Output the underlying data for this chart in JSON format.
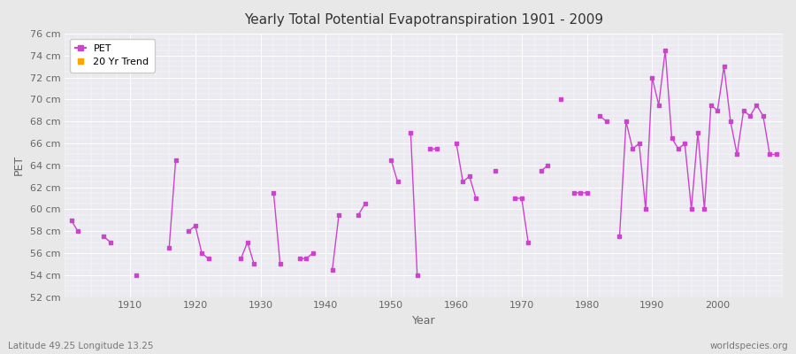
{
  "title": "Yearly Total Potential Evapotranspiration 1901 - 2009",
  "xlabel": "Year",
  "ylabel": "PET",
  "footnote_left": "Latitude 49.25 Longitude 13.25",
  "footnote_right": "worldspecies.org",
  "ylim": [
    52,
    76
  ],
  "ytick_labels": [
    "52 cm",
    "54 cm",
    "56 cm",
    "58 cm",
    "60 cm",
    "62 cm",
    "64 cm",
    "66 cm",
    "68 cm",
    "70 cm",
    "72 cm",
    "74 cm",
    "76 cm"
  ],
  "ytick_values": [
    52,
    54,
    56,
    58,
    60,
    62,
    64,
    66,
    68,
    70,
    72,
    74,
    76
  ],
  "pet_color": "#CC44CC",
  "trend_color": "#FFA500",
  "bg_color": "#E8E8E8",
  "plot_bg_color": "#EAEAF0",
  "grid_color": "#FFFFFF",
  "legend_labels": [
    "PET",
    "20 Yr Trend"
  ],
  "years": [
    1901,
    1902,
    1903,
    1904,
    1905,
    1906,
    1907,
    1908,
    1909,
    1910,
    1911,
    1912,
    1913,
    1914,
    1915,
    1916,
    1917,
    1918,
    1919,
    1920,
    1921,
    1922,
    1923,
    1924,
    1925,
    1926,
    1927,
    1928,
    1929,
    1930,
    1931,
    1932,
    1933,
    1934,
    1935,
    1936,
    1937,
    1938,
    1939,
    1940,
    1941,
    1942,
    1943,
    1944,
    1945,
    1946,
    1947,
    1948,
    1949,
    1950,
    1951,
    1952,
    1953,
    1954,
    1955,
    1956,
    1957,
    1958,
    1959,
    1960,
    1961,
    1962,
    1963,
    1964,
    1965,
    1966,
    1967,
    1968,
    1969,
    1970,
    1971,
    1972,
    1973,
    1974,
    1975,
    1976,
    1977,
    1978,
    1979,
    1980,
    1981,
    1982,
    1983,
    1984,
    1985,
    1986,
    1987,
    1988,
    1989,
    1990,
    1991,
    1992,
    1993,
    1994,
    1995,
    1996,
    1997,
    1998,
    1999,
    2000,
    2001,
    2002,
    2003,
    2004,
    2005,
    2006,
    2007,
    2008,
    2009
  ],
  "pet_values": [
    59.0,
    58.0,
    null,
    null,
    null,
    57.5,
    57.0,
    null,
    null,
    null,
    54.0,
    null,
    null,
    null,
    null,
    56.5,
    64.5,
    null,
    58.0,
    58.5,
    56.0,
    55.5,
    null,
    null,
    null,
    null,
    55.5,
    57.0,
    55.0,
    null,
    null,
    61.5,
    55.0,
    null,
    null,
    55.5,
    55.5,
    56.0,
    null,
    null,
    54.5,
    59.5,
    null,
    null,
    59.5,
    60.5,
    null,
    null,
    null,
    64.5,
    62.5,
    null,
    67.0,
    54.0,
    null,
    65.5,
    65.5,
    null,
    null,
    66.0,
    62.5,
    63.0,
    61.0,
    null,
    null,
    63.5,
    null,
    null,
    61.0,
    61.0,
    57.0,
    null,
    63.5,
    64.0,
    null,
    70.0,
    null,
    61.5,
    61.5,
    61.5,
    null,
    68.5,
    68.0,
    null,
    57.5,
    68.0,
    65.5,
    66.0,
    60.0,
    72.0,
    69.5,
    74.5,
    66.5,
    65.5,
    66.0,
    60.0,
    67.0,
    60.0,
    69.5,
    69.0,
    73.0,
    68.0,
    65.0,
    69.0,
    68.5,
    69.5,
    68.5,
    65.0,
    65.0
  ]
}
